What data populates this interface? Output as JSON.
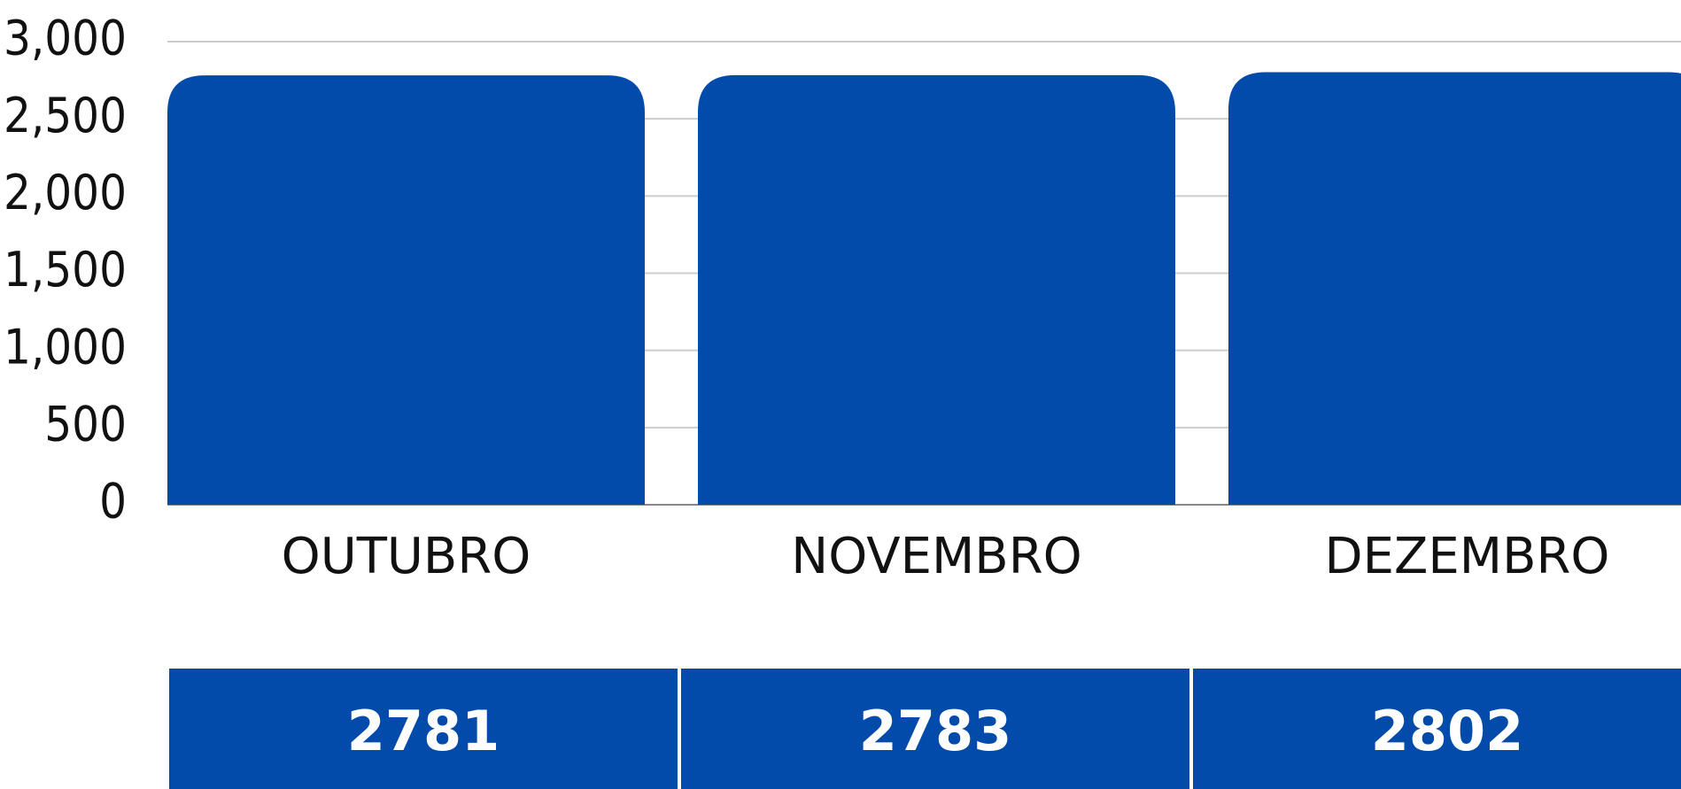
{
  "chart_data": {
    "type": "bar",
    "categories": [
      "OUTUBRO",
      "NOVEMBRO",
      "DEZEMBRO"
    ],
    "values": [
      2781,
      2783,
      2802
    ],
    "color": "#034bab",
    "ylim": [
      0,
      3000
    ],
    "yticks": [
      0,
      500,
      {
        "value": 1000,
        "label": "1,000"
      },
      {
        "value": 1500,
        "label": "1,500"
      },
      {
        "value": 2000,
        "label": "2,000"
      },
      {
        "value": 2500,
        "label": "2,500"
      },
      {
        "value": 3000,
        "label": "3,000"
      }
    ],
    "grid": true
  }
}
